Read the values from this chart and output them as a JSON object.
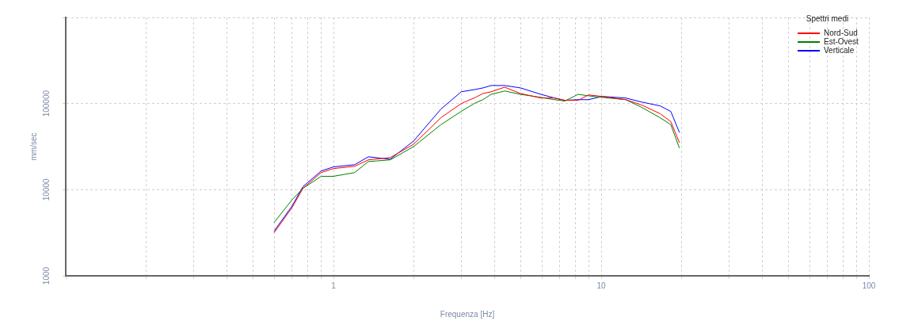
{
  "chart_data": {
    "type": "line",
    "xlabel": "Frequenza [Hz]",
    "ylabel": "mm/sec",
    "legend_title": "Spettri medi",
    "legend": "top right",
    "log": "xy",
    "grid": true,
    "xlim": [
      0.1,
      100
    ],
    "ylim": [
      1000,
      1000000
    ],
    "xticks": [
      {
        "value": 0.1,
        "label": null
      },
      {
        "value": 0.2,
        "label": null
      },
      {
        "value": 0.3,
        "label": null
      },
      {
        "value": 0.4,
        "label": null
      },
      {
        "value": 0.5,
        "label": null
      },
      {
        "value": 0.6,
        "label": null
      },
      {
        "value": 0.7,
        "label": null
      },
      {
        "value": 0.8,
        "label": null
      },
      {
        "value": 0.9,
        "label": null
      },
      1,
      {
        "value": 2,
        "label": null
      },
      {
        "value": 3,
        "label": null
      },
      {
        "value": 4,
        "label": null
      },
      {
        "value": 5,
        "label": null
      },
      {
        "value": 6,
        "label": null
      },
      {
        "value": 7,
        "label": null
      },
      {
        "value": 8,
        "label": null
      },
      {
        "value": 9,
        "label": null
      },
      10,
      {
        "value": 20,
        "label": null
      },
      {
        "value": 30,
        "label": null
      },
      {
        "value": 40,
        "label": null
      },
      {
        "value": 50,
        "label": null
      },
      {
        "value": 60,
        "label": null
      },
      {
        "value": 70,
        "label": null
      },
      {
        "value": 80,
        "label": null
      },
      {
        "value": 90,
        "label": null
      },
      100
    ],
    "yticks": [
      1000,
      10000,
      100000,
      {
        "value": 1000000,
        "label": null
      }
    ],
    "x": [
      0.6,
      0.7,
      0.77,
      0.9,
      1.0,
      1.2,
      1.35,
      1.63,
      1.99,
      2.52,
      3.0,
      3.39,
      3.62,
      3.88,
      4.36,
      4.99,
      5.96,
      6.69,
      7.31,
      8.2,
      8.97,
      10.07,
      12.35,
      14.2,
      16.6,
      18.2,
      19.6
    ],
    "series": [
      {
        "name": "Nord-Sud",
        "color": "#ff0000",
        "values": [
          3160,
          6180,
          10400,
          15800,
          17600,
          18700,
          22200,
          23600,
          33600,
          68500,
          100000,
          118000,
          131000,
          137000,
          155000,
          131000,
          116000,
          116000,
          109000,
          109000,
          126000,
          121000,
          111000,
          96000,
          76300,
          61800,
          35100
        ]
      },
      {
        "name": "Est-Ovest",
        "color": "#008000",
        "values": [
          4150,
          7620,
          10400,
          14300,
          14300,
          15800,
          21200,
          22200,
          31600,
          56900,
          81100,
          102000,
          111000,
          128000,
          140000,
          128000,
          118000,
          111000,
          107000,
          128000,
          123000,
          118000,
          111000,
          90000,
          68500,
          56900,
          30400
        ]
      },
      {
        "name": "Verticale",
        "color": "#0000ff",
        "values": [
          3300,
          6450,
          10900,
          16500,
          18400,
          19500,
          24100,
          22600,
          36600,
          86300,
          137000,
          146000,
          152000,
          162000,
          162000,
          152000,
          128000,
          116000,
          109000,
          111000,
          111000,
          121000,
          116000,
          104000,
          94000,
          81100,
          46100
        ]
      }
    ]
  }
}
